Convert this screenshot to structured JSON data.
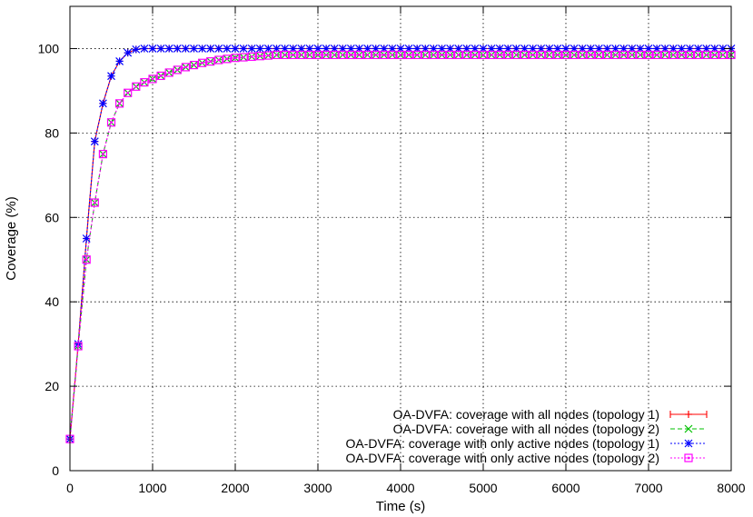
{
  "chart_data": {
    "type": "line",
    "title": "",
    "xlabel": "Time (s)",
    "ylabel": "Coverage (%)",
    "xlim": [
      0,
      8000
    ],
    "ylim": [
      0,
      110
    ],
    "xticks": [
      "0",
      "1000",
      "2000",
      "3000",
      "4000",
      "5000",
      "6000",
      "7000",
      "8000"
    ],
    "yticks": [
      "0",
      "20",
      "40",
      "60",
      "80",
      "100"
    ],
    "grid": true,
    "legend_position": "bottom-right",
    "series": [
      {
        "name": "OA-DVFA: coverage with all nodes  (topology 1)",
        "color": "#ff0000",
        "marker": "plus",
        "dash": "solid",
        "profile": "fast",
        "x": [
          0,
          100,
          200,
          300,
          400,
          500,
          600,
          700,
          800,
          900,
          1000,
          1500,
          2000,
          3000,
          4000,
          5000,
          6000,
          7000,
          8000
        ],
        "y": [
          7.5,
          30,
          55,
          78,
          87,
          93.5,
          97,
          99,
          99.8,
          100,
          100,
          100,
          100,
          100,
          100,
          100,
          100,
          100,
          100
        ]
      },
      {
        "name": "OA-DVFA: coverage with all nodes  (topology 2)",
        "color": "#00c000",
        "marker": "cross",
        "dash": "dashed",
        "profile": "slow",
        "x": [
          0,
          100,
          200,
          300,
          400,
          500,
          600,
          700,
          800,
          900,
          1000,
          1200,
          1400,
          1600,
          1800,
          2000,
          2500,
          3000,
          4000,
          5000,
          6000,
          7000,
          8000
        ],
        "y": [
          7.5,
          29.5,
          50,
          63.5,
          75,
          82.5,
          87,
          89.5,
          91,
          92,
          92.8,
          94.3,
          95.6,
          96.6,
          97.3,
          97.8,
          98.5,
          98.5,
          98.5,
          98.5,
          98.5,
          98.5,
          98.5
        ]
      },
      {
        "name": "OA-DVFA: coverage with only active nodes  (topology 1)",
        "color": "#0000ff",
        "marker": "star",
        "dash": "dotted",
        "profile": "fast",
        "x": [
          0,
          100,
          200,
          300,
          400,
          500,
          600,
          700,
          800,
          900,
          1000,
          1500,
          2000,
          3000,
          4000,
          5000,
          6000,
          7000,
          8000
        ],
        "y": [
          7.5,
          30,
          55,
          78,
          87,
          93.5,
          97,
          99,
          99.8,
          100,
          100,
          100,
          100,
          100,
          100,
          100,
          100,
          100,
          100
        ]
      },
      {
        "name": "OA-DVFA: coverage with only active nodes  (topology 2)",
        "color": "#ff00ff",
        "marker": "square",
        "dash": "dotted",
        "profile": "slow",
        "x": [
          0,
          100,
          200,
          300,
          400,
          500,
          600,
          700,
          800,
          900,
          1000,
          1200,
          1400,
          1600,
          1800,
          2000,
          2500,
          3000,
          4000,
          5000,
          6000,
          7000,
          8000
        ],
        "y": [
          7.5,
          29.5,
          50,
          63.5,
          75,
          82.5,
          87,
          89.5,
          91,
          92,
          92.8,
          94.3,
          95.6,
          96.6,
          97.3,
          97.8,
          98.5,
          98.5,
          98.5,
          98.5,
          98.5,
          98.5,
          98.5
        ]
      }
    ]
  }
}
